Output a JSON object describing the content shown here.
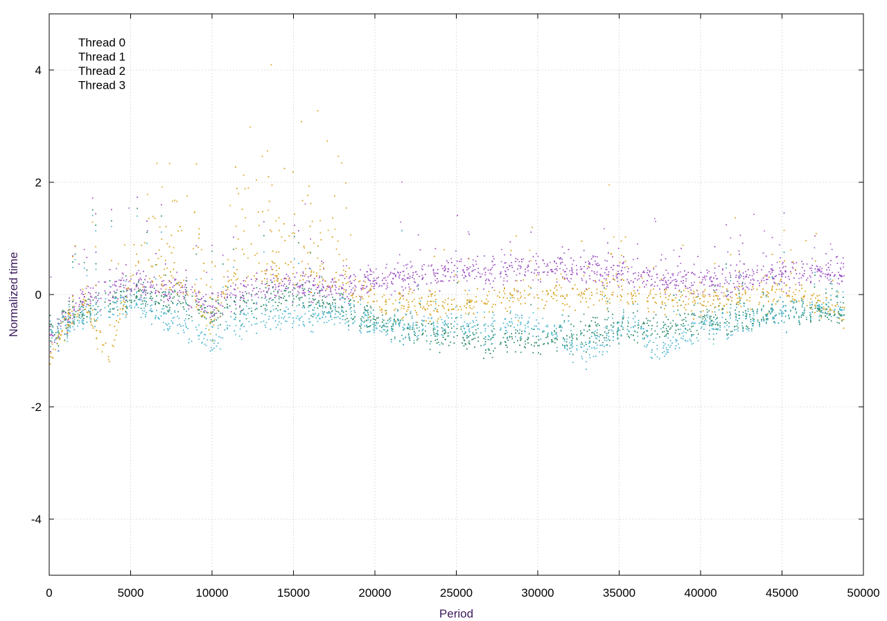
{
  "chart_data": {
    "type": "scatter",
    "title": "",
    "xlabel": "Period",
    "ylabel": "Normalized time",
    "xlim": [
      0,
      50000
    ],
    "ylim": [
      -5,
      5
    ],
    "xticks": [
      0,
      5000,
      10000,
      15000,
      20000,
      25000,
      30000,
      35000,
      40000,
      45000,
      50000
    ],
    "yticks": [
      -4,
      -2,
      0,
      2,
      4
    ],
    "grid": true,
    "legend_position": "top-left",
    "x_extent": 48800,
    "series": [
      {
        "name": "Thread 0",
        "color": "#9b4fc0",
        "trend": [
          [
            0,
            -0.8
          ],
          [
            2000,
            -0.1
          ],
          [
            5000,
            0.2
          ],
          [
            8000,
            0.1
          ],
          [
            10000,
            -0.2
          ],
          [
            12000,
            0.1
          ],
          [
            15000,
            0.2
          ],
          [
            18000,
            0.1
          ],
          [
            20000,
            0.3
          ],
          [
            25000,
            0.4
          ],
          [
            30000,
            0.5
          ],
          [
            35000,
            0.4
          ],
          [
            40000,
            0.2
          ],
          [
            45000,
            0.4
          ],
          [
            48800,
            0.4
          ]
        ]
      },
      {
        "name": "Thread 1",
        "color": "#2e8b6a",
        "trend": [
          [
            0,
            -0.6
          ],
          [
            3000,
            -0.2
          ],
          [
            5000,
            0.0
          ],
          [
            8000,
            -0.1
          ],
          [
            10000,
            -0.3
          ],
          [
            15000,
            0.0
          ],
          [
            20000,
            -0.4
          ],
          [
            25000,
            -0.8
          ],
          [
            30000,
            -0.8
          ],
          [
            35000,
            -0.6
          ],
          [
            40000,
            -0.5
          ],
          [
            45000,
            -0.3
          ],
          [
            48800,
            -0.3
          ]
        ]
      },
      {
        "name": "Thread 2",
        "color": "#4fb8d2",
        "trend": [
          [
            0,
            -0.7
          ],
          [
            3000,
            -0.3
          ],
          [
            5000,
            -0.1
          ],
          [
            8000,
            -0.5
          ],
          [
            10000,
            -0.8
          ],
          [
            12000,
            -0.4
          ],
          [
            15000,
            -0.4
          ],
          [
            18000,
            -0.3
          ],
          [
            20000,
            -0.5
          ],
          [
            25000,
            -0.6
          ],
          [
            30000,
            -0.5
          ],
          [
            33000,
            -1.0
          ],
          [
            36000,
            -0.4
          ],
          [
            37000,
            -1.0
          ],
          [
            40000,
            -0.6
          ],
          [
            45000,
            -0.3
          ],
          [
            48800,
            -0.2
          ]
        ]
      },
      {
        "name": "Thread 3",
        "color": "#daa520",
        "trend": [
          [
            0,
            -1.1
          ],
          [
            2000,
            0.0
          ],
          [
            3500,
            -1.1
          ],
          [
            5000,
            0.3
          ],
          [
            8000,
            0.2
          ],
          [
            10000,
            -0.5
          ],
          [
            11000,
            0.3
          ],
          [
            15000,
            0.4
          ],
          [
            18000,
            0.2
          ],
          [
            20000,
            -0.1
          ],
          [
            25000,
            -0.2
          ],
          [
            30000,
            0.0
          ],
          [
            35000,
            0.0
          ],
          [
            40000,
            -0.1
          ],
          [
            45000,
            0.1
          ],
          [
            48800,
            -0.3
          ]
        ],
        "bursts": [
          [
            5000,
            9500,
            1.5
          ],
          [
            11000,
            18500,
            2.0
          ],
          [
            34000,
            35500,
            1.3
          ]
        ]
      }
    ]
  }
}
